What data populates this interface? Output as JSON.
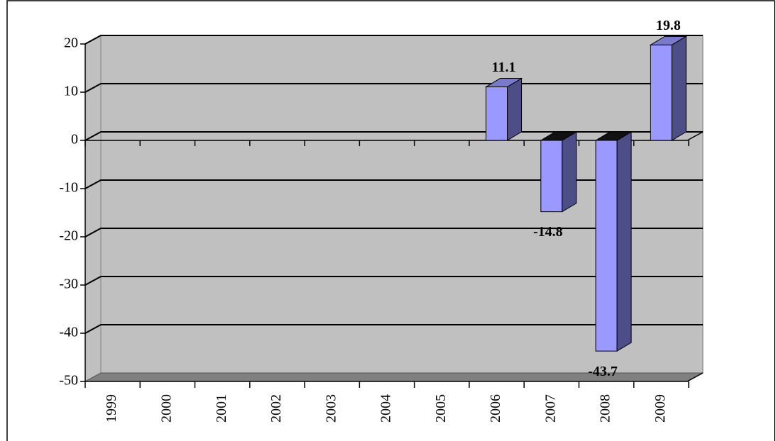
{
  "chart_data": {
    "type": "bar",
    "categories": [
      "1999",
      "2000",
      "2001",
      "2002",
      "2003",
      "2004",
      "2005",
      "2006",
      "2007",
      "2008",
      "2009"
    ],
    "values": [
      null,
      null,
      null,
      null,
      null,
      null,
      null,
      11.1,
      -14.8,
      -43.7,
      19.8
    ],
    "color": "#9999ff",
    "ylim": [
      -50,
      20
    ],
    "yticks": [
      -50,
      -40,
      -30,
      -20,
      -10,
      0,
      10,
      20
    ],
    "grid": true
  }
}
